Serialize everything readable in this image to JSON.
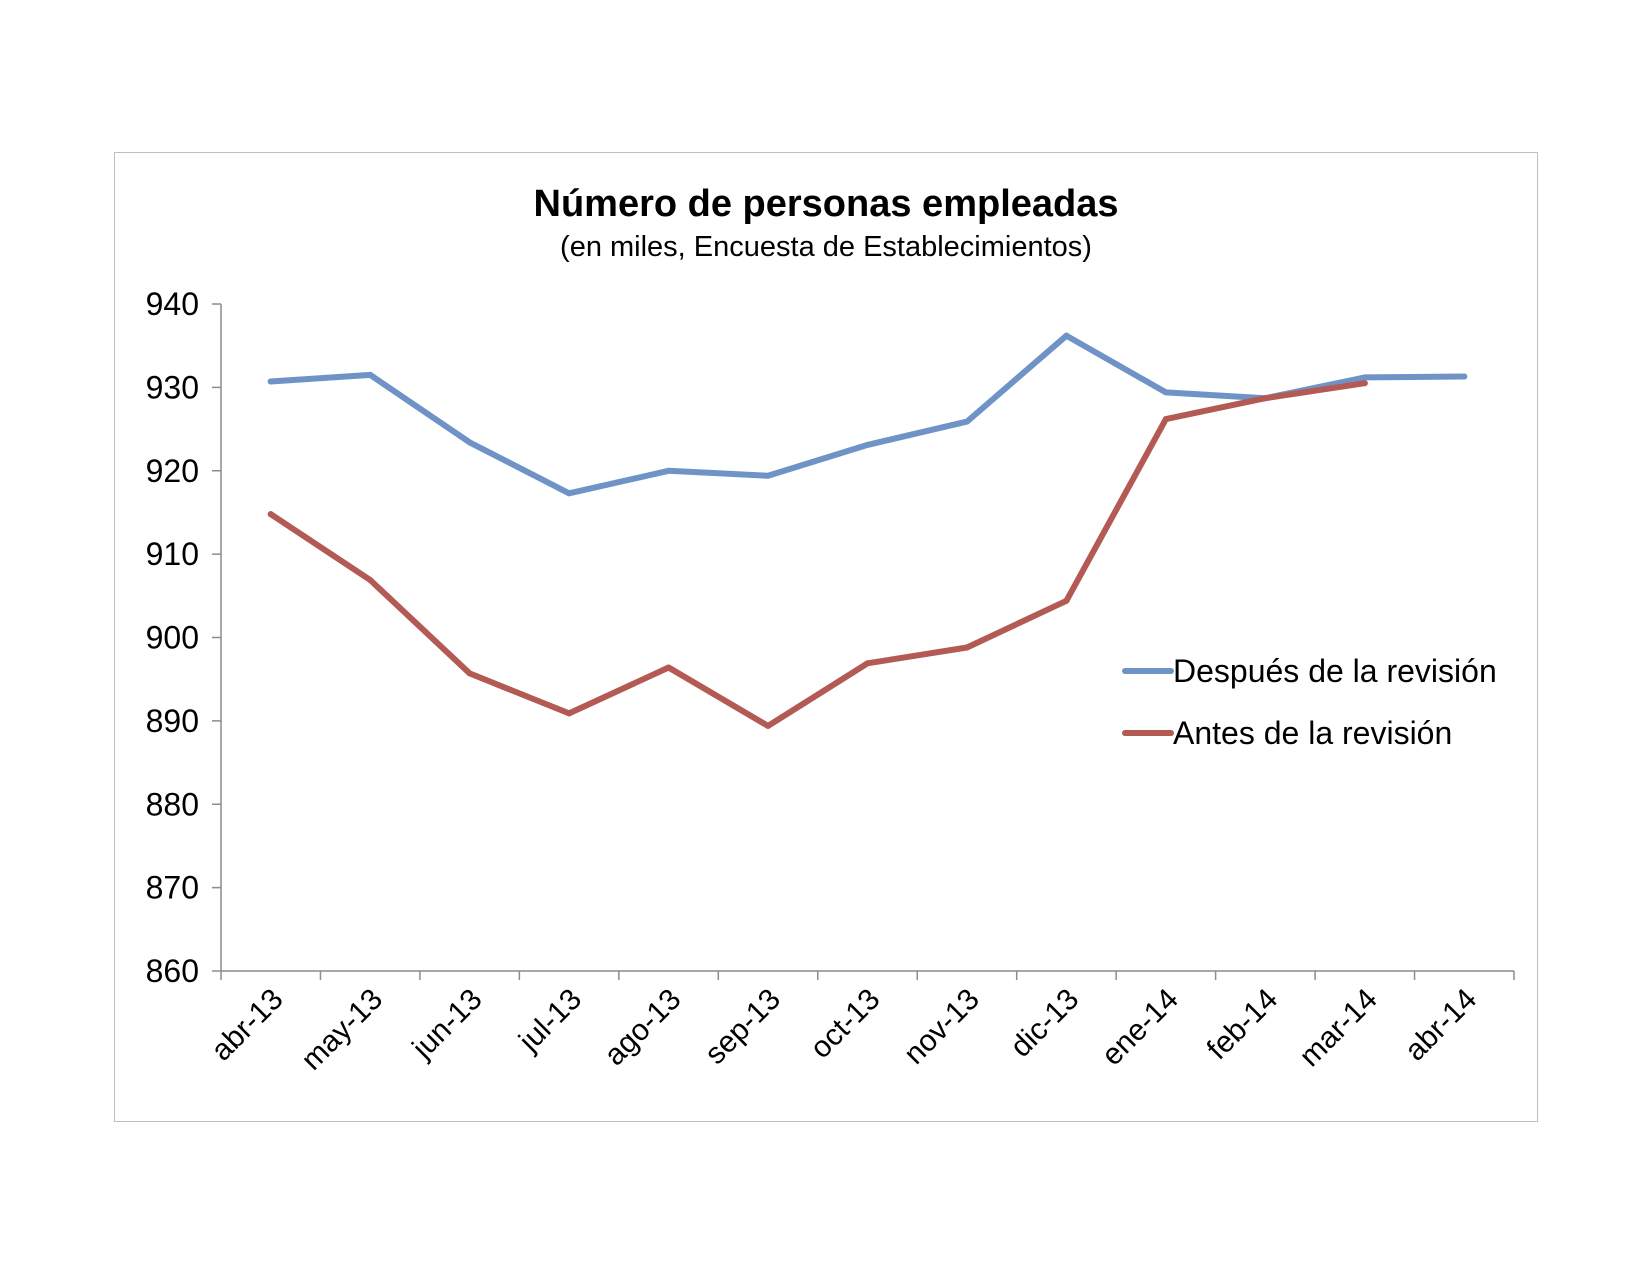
{
  "chart_data": {
    "type": "line",
    "title": "Número de personas empleadas",
    "subtitle": "(en miles, Encuesta de Establecimientos)",
    "xlabel": "",
    "ylabel": "",
    "ylim": [
      860,
      940
    ],
    "yticks": [
      "940",
      "930",
      "920",
      "910",
      "900",
      "890",
      "880",
      "870",
      "860"
    ],
    "categories": [
      "abr-13",
      "may-13",
      "jun-13",
      "jul-13",
      "ago-13",
      "sep-13",
      "oct-13",
      "nov-13",
      "dic-13",
      "ene-14",
      "feb-14",
      "mar-14",
      "abr-14"
    ],
    "grid": false,
    "legend_position": "right",
    "series": [
      {
        "name": "Después de la revisión",
        "color": "#6f93c6",
        "values": [
          930.7,
          931.5,
          923.4,
          917.3,
          920.0,
          919.4,
          923.1,
          925.9,
          936.2,
          929.4,
          928.7,
          931.2,
          931.3
        ]
      },
      {
        "name": "Antes de la revisión",
        "color": "#b35a55",
        "values": [
          914.8,
          906.9,
          895.7,
          890.9,
          896.4,
          889.4,
          896.9,
          898.8,
          904.4,
          926.2,
          928.7,
          930.5,
          null
        ]
      }
    ]
  }
}
